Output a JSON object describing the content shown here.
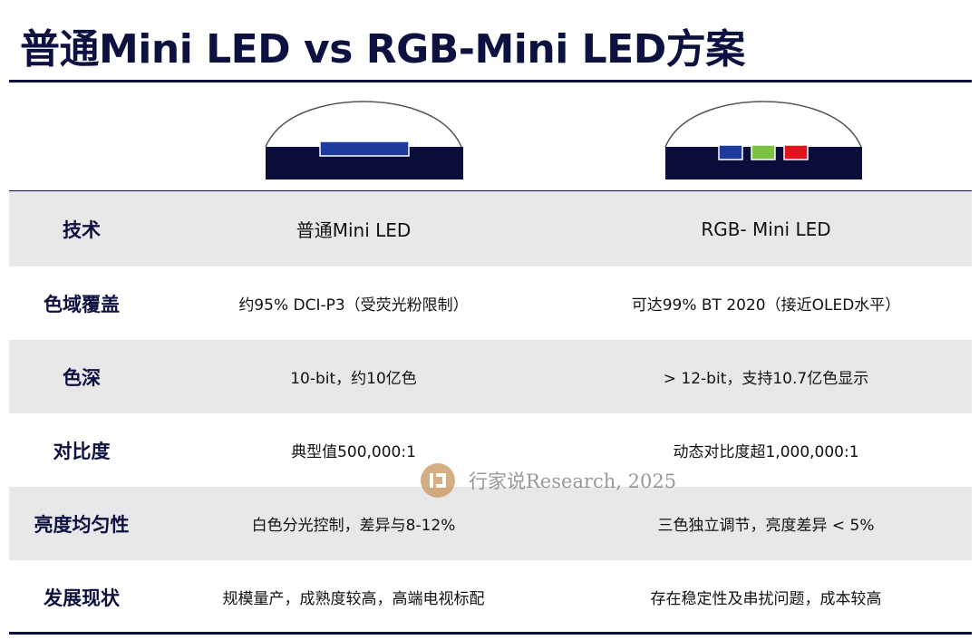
{
  "title": "普通Mini LED vs RGB-Mini LED方案",
  "diagrams": {
    "left": {
      "chip_colors": [
        "#1d3a9e"
      ],
      "base_color": "#0a0c3a"
    },
    "right": {
      "chip_colors": [
        "#1d3a9e",
        "#7cc242",
        "#e0141c"
      ],
      "base_color": "#0a0c3a"
    }
  },
  "table": {
    "rows": [
      {
        "label": "技术",
        "a": "普通Mini LED",
        "b": "RGB- Mini LED"
      },
      {
        "label": "色域覆盖",
        "a": "约95% DCI-P3（受荧光粉限制）",
        "b": "可达99% BT 2020（接近OLED水平）"
      },
      {
        "label": "色深",
        "a": "10-bit，约10亿色",
        "b": "> 12-bit，支持10.7亿色显示"
      },
      {
        "label": "对比度",
        "a": "典型值500,000:1",
        "b": "动态对比度超1,000,000:1"
      },
      {
        "label": "亮度均匀性",
        "a": "白色分光控制，差异与8-12%",
        "b": "三色独立调节，亮度差异 < 5%"
      },
      {
        "label": "发展现状",
        "a": "规模量产，成熟度较高，高端电视标配",
        "b": "存在稳定性及串扰问题，成本较高"
      }
    ]
  },
  "watermark": {
    "text": "行家说Research, 2025",
    "logo_color": "#c8955a",
    "logo_icon": "research-logo-icon"
  }
}
